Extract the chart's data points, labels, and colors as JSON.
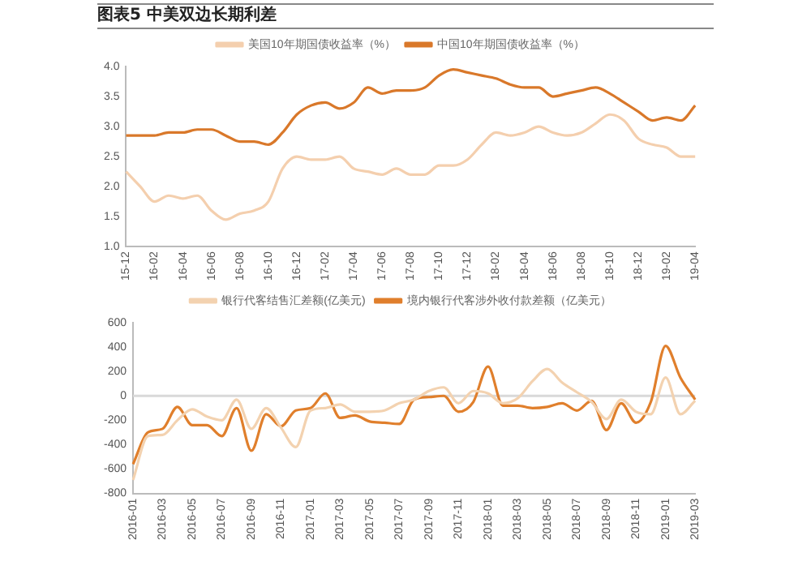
{
  "chart_data": [
    {
      "type": "line",
      "title": "图表5 中美双边长期利差",
      "legend": "top",
      "grid": false,
      "marker": "none",
      "line_style": "solid",
      "categories": [
        "15-12",
        null,
        "16-02",
        null,
        "16-04",
        null,
        "16-06",
        null,
        "16-08",
        null,
        "16-10",
        null,
        "16-12",
        null,
        "17-02",
        null,
        "17-04",
        null,
        "17-06",
        null,
        "17-08",
        null,
        "17-10",
        null,
        "17-12",
        null,
        "18-02",
        null,
        "18-04",
        null,
        "18-06",
        null,
        "18-08",
        null,
        "18-10",
        null,
        "18-12",
        null,
        "19-02",
        null,
        "19-04"
      ],
      "ylim": [
        1.0,
        4.0
      ],
      "yticks": [
        {
          "value": 1.0,
          "label": "1.0"
        },
        {
          "value": 1.5,
          "label": "1.5"
        },
        {
          "value": 2.0,
          "label": "2.0"
        },
        {
          "value": 2.5,
          "label": "2.5"
        },
        {
          "value": 3.0,
          "label": "3.0"
        },
        {
          "value": 3.5,
          "label": "3.5"
        },
        {
          "value": 4.0,
          "label": "4.0"
        }
      ],
      "series": [
        {
          "name": "美国10年期国债收益率（%）",
          "color": "#f4cfae",
          "values": [
            2.25,
            2.0,
            1.75,
            1.85,
            1.8,
            1.85,
            1.6,
            1.45,
            1.55,
            1.6,
            1.75,
            2.3,
            2.5,
            2.45,
            2.45,
            2.5,
            2.3,
            2.25,
            2.2,
            2.3,
            2.2,
            2.2,
            2.35,
            2.35,
            2.45,
            2.7,
            2.9,
            2.85,
            2.9,
            3.0,
            2.9,
            2.85,
            2.9,
            3.05,
            3.2,
            3.1,
            2.8,
            2.7,
            2.65,
            2.5,
            2.5
          ]
        },
        {
          "name": "中国10年期国债收益率（%）",
          "color": "#d9782a",
          "values": [
            2.85,
            2.85,
            2.85,
            2.9,
            2.9,
            2.95,
            2.95,
            2.85,
            2.75,
            2.75,
            2.7,
            2.9,
            3.2,
            3.35,
            3.4,
            3.3,
            3.4,
            3.65,
            3.55,
            3.6,
            3.6,
            3.65,
            3.85,
            3.95,
            3.9,
            3.85,
            3.8,
            3.7,
            3.65,
            3.65,
            3.5,
            3.55,
            3.6,
            3.65,
            3.55,
            3.4,
            3.25,
            3.1,
            3.15,
            3.1,
            3.35
          ]
        }
      ]
    },
    {
      "type": "line",
      "legend": "top",
      "grid": false,
      "marker": "none",
      "line_style": "solid",
      "categories": [
        "2016-01",
        null,
        "2016-03",
        null,
        "2016-05",
        null,
        "2016-07",
        null,
        "2016-09",
        null,
        "2016-11",
        null,
        "2017-01",
        null,
        "2017-03",
        null,
        "2017-05",
        null,
        "2017-07",
        null,
        "2017-09",
        null,
        "2017-11",
        null,
        "2018-01",
        null,
        "2018-03",
        null,
        "2018-05",
        null,
        "2018-07",
        null,
        "2018-09",
        null,
        "2018-11",
        null,
        "2019-01",
        null,
        "2019-03"
      ],
      "ylim": [
        -800,
        600
      ],
      "yticks": [
        -800,
        -600,
        -400,
        -200,
        0,
        200,
        400,
        600
      ],
      "ref_lines": [
        {
          "axis": "y",
          "value": 0,
          "color": "#d9d9d9"
        }
      ],
      "series": [
        {
          "name": "银行代客结售汇差额(亿美元)",
          "color": "#f3d2b0",
          "values": [
            -690,
            -330,
            -320,
            -200,
            -110,
            -170,
            -200,
            -30,
            -270,
            -100,
            -260,
            -420,
            -120,
            -100,
            -70,
            -130,
            -130,
            -120,
            -60,
            -30,
            40,
            70,
            -60,
            40,
            20,
            -60,
            -20,
            120,
            220,
            110,
            30,
            -50,
            -190,
            -30,
            -130,
            -150,
            150,
            -150,
            -40
          ]
        },
        {
          "name": "境内银行代客涉外收付款差额（亿美元）",
          "color": "#e07f2c",
          "values": [
            -560,
            -300,
            -270,
            -90,
            -240,
            -240,
            -330,
            -100,
            -450,
            -150,
            -250,
            -120,
            -100,
            20,
            -180,
            -160,
            -210,
            -220,
            -230,
            -30,
            -10,
            0,
            -130,
            -50,
            240,
            -80,
            -80,
            -100,
            -90,
            -60,
            -120,
            -40,
            -280,
            -60,
            -220,
            -50,
            410,
            150,
            -30
          ]
        }
      ]
    }
  ]
}
